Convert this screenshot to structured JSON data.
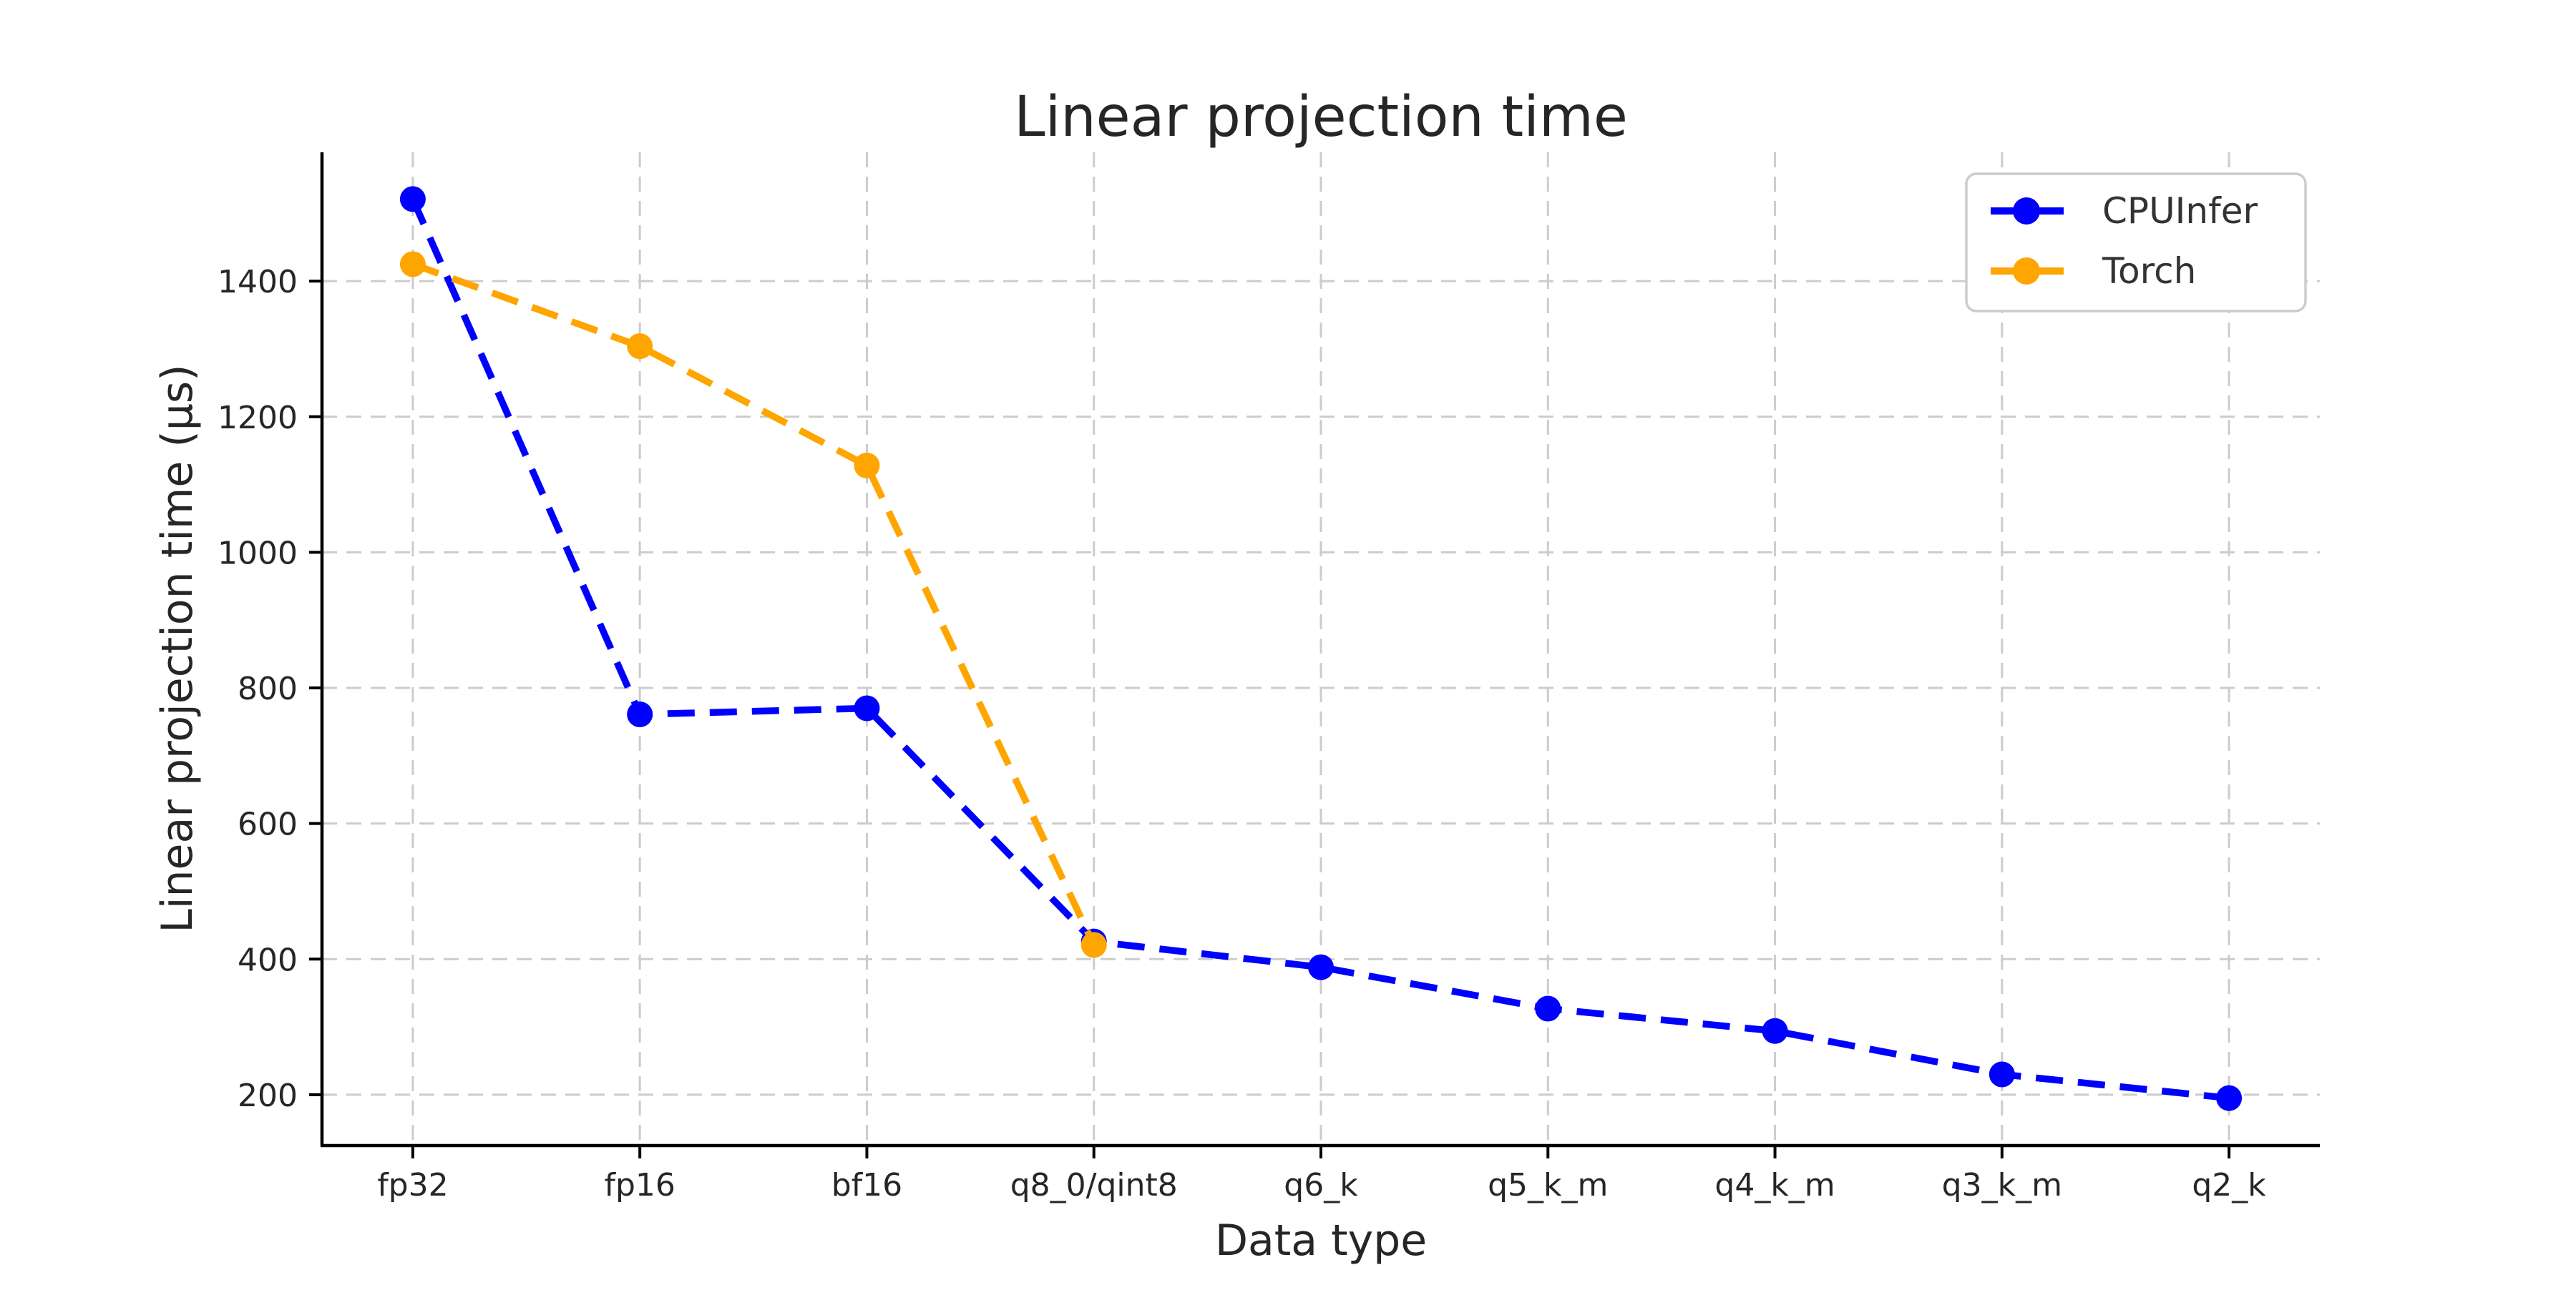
{
  "chart_data": {
    "type": "line",
    "title": "Linear projection time",
    "xlabel": "Data type",
    "ylabel": "Linear projection time (μs)",
    "categories": [
      "fp32",
      "fp16",
      "bf16",
      "q8_0/qint8",
      "q6_k",
      "q5_k_m",
      "q4_k_m",
      "q3_k_m",
      "q2_k"
    ],
    "series": [
      {
        "name": "CPUInfer",
        "color": "#0000ff",
        "linestyle": "dashed",
        "marker": "circle",
        "values": [
          1521,
          761,
          770,
          426,
          388,
          327,
          294,
          230,
          195
        ]
      },
      {
        "name": "Torch",
        "color": "#ffa500",
        "linestyle": "dashed",
        "marker": "circle",
        "values": [
          1425,
          1304,
          1128,
          421,
          null,
          null,
          null,
          null,
          null
        ]
      }
    ],
    "yticks": [
      200,
      400,
      600,
      800,
      1000,
      1200,
      1400
    ],
    "ylim": [
      125,
      1590
    ],
    "grid": true,
    "legend_position": "upper right"
  },
  "style": {
    "grid_color": "#cccccc",
    "spine_color": "#000000",
    "tick_color": "#000000",
    "text_color": "#262626",
    "legend_border_color": "#cccccc",
    "legend_background": "#ffffff"
  }
}
